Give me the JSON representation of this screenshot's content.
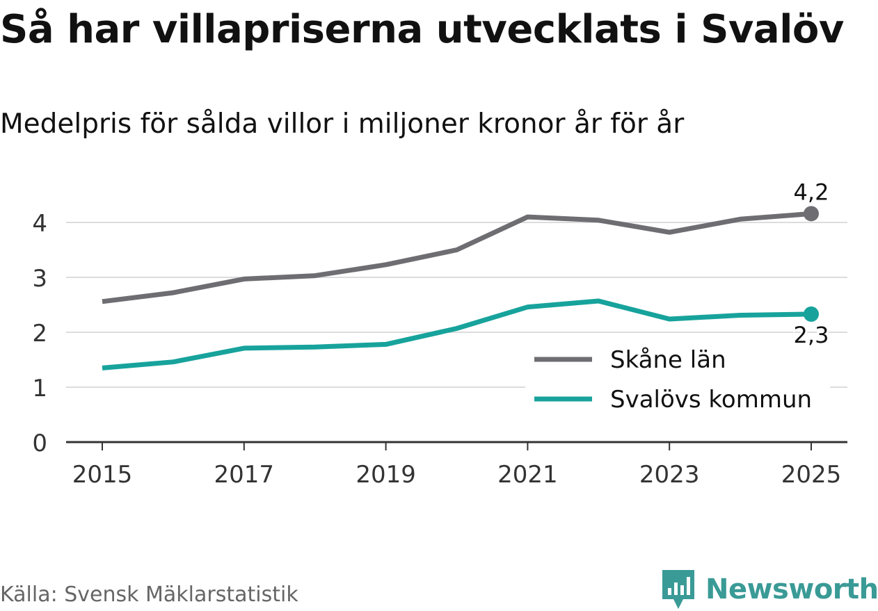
{
  "title": "Så har villapriserna utvecklats i Svalöv",
  "subtitle": "Medelpris för sålda villor i miljoner kronor år för år",
  "source": "Källa: Svensk Mäklarstatistik",
  "brand": {
    "name": "Newsworthy",
    "icon": "newsworthy-logo-icon",
    "color": "#3a9a96"
  },
  "chart_data": {
    "type": "line",
    "x": [
      2015,
      2016,
      2017,
      2018,
      2019,
      2020,
      2021,
      2022,
      2023,
      2024,
      2025
    ],
    "x_tick_labels": [
      "2015",
      "2017",
      "2019",
      "2021",
      "2023",
      "2025"
    ],
    "y_tick_labels": [
      "0",
      "1",
      "2",
      "3",
      "4"
    ],
    "ylim": [
      0,
      4.5
    ],
    "grid": true,
    "legend_position": "bottom-right",
    "series": [
      {
        "name": "Skåne län",
        "color": "#6e6d72",
        "values": [
          2.56,
          2.72,
          2.97,
          3.03,
          3.23,
          3.5,
          4.1,
          4.04,
          3.82,
          4.06,
          4.16
        ],
        "end_label": "4,2"
      },
      {
        "name": "Svalövs kommun",
        "color": "#17a39c",
        "values": [
          1.35,
          1.46,
          1.71,
          1.73,
          1.78,
          2.07,
          2.46,
          2.57,
          2.24,
          2.31,
          2.33
        ],
        "end_label": "2,3"
      }
    ]
  }
}
